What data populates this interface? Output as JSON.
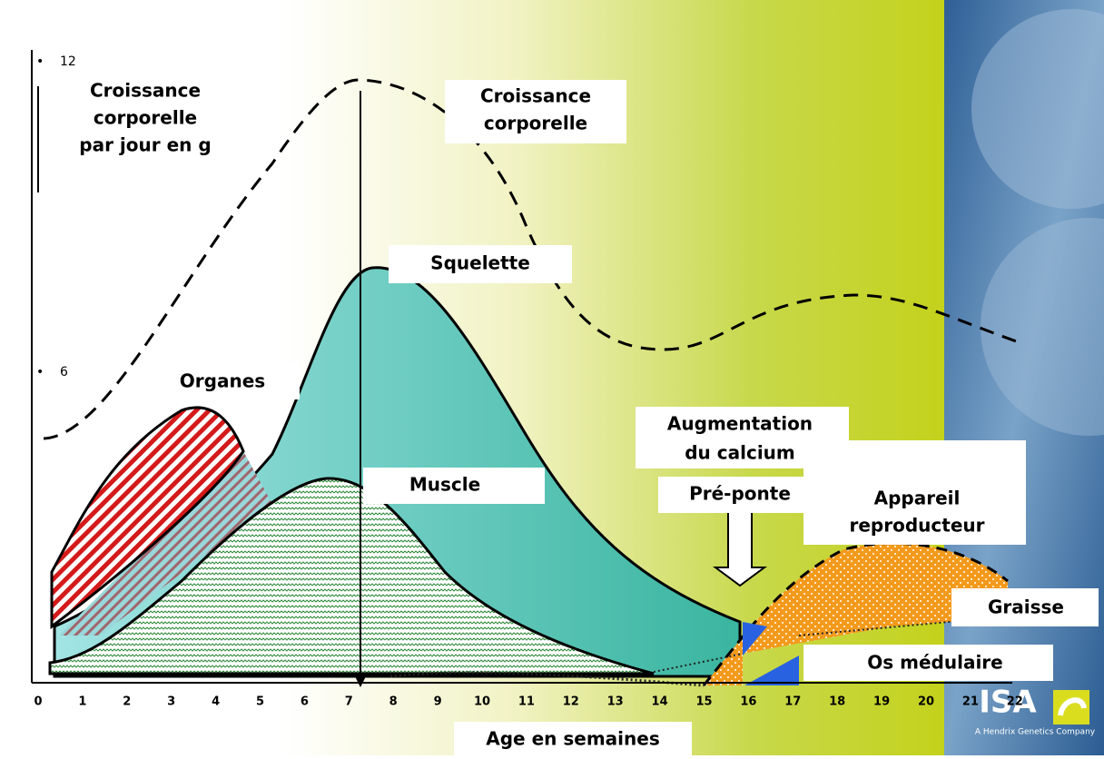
{
  "y_axis": {
    "title": [
      "Croissance",
      "corporelle",
      "par jour en g"
    ],
    "ticks": [
      12,
      6
    ]
  },
  "x_axis": {
    "title": "Age en semaines",
    "ticks": [
      0,
      1,
      2,
      3,
      4,
      5,
      6,
      7,
      8,
      9,
      10,
      11,
      12,
      13,
      14,
      15,
      16,
      17,
      18,
      19,
      20,
      21,
      22
    ]
  },
  "labels": {
    "croissance": [
      "Croissance",
      "corporelle"
    ],
    "squelette": "Squelette",
    "organes": "Organes",
    "muscle": "Muscle",
    "calcium": [
      "Augmentation",
      "du calcium"
    ],
    "preponte": "Pré-ponte",
    "appareil": [
      "Appareil",
      "reproducteur"
    ],
    "graisse": "Graisse",
    "os": "Os médulaire"
  },
  "logo": {
    "name": "ISA",
    "tagline": "A Hendrix Genetics Company"
  }
}
